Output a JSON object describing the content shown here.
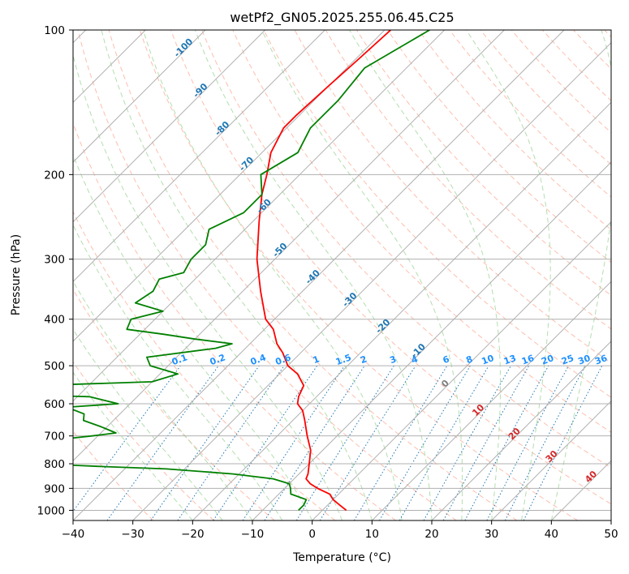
{
  "chart_data": {
    "type": "line",
    "title": "wetPf2_GN05.2025.255.06.45.C25",
    "xlabel": "Temperature (°C)",
    "ylabel": "Pressure (hPa)",
    "xlim": [
      -40,
      50
    ],
    "ylim": [
      1050,
      100
    ],
    "y_scale": "log",
    "x_ticks": [
      "−40",
      "−30",
      "−20",
      "−10",
      "0",
      "10",
      "20",
      "30",
      "40",
      "50"
    ],
    "y_ticks": [
      "100",
      "200",
      "300",
      "400",
      "500",
      "600",
      "700",
      "800",
      "900",
      "1000"
    ],
    "grid": true,
    "skew": true,
    "colors": {
      "temperature": "#ff0000",
      "dewpoint": "#008000",
      "isotherm": "#b0b0b0",
      "dry_adiabat": "#fdae98",
      "moist_adiabat": "#a6d8a0",
      "mixing_ratio": "#1f77b4",
      "isotherm_label": "#1f77b4",
      "warm_label": "#d62728",
      "zero_label": "#7f7f7f",
      "mixing_label": "#1e90ff"
    },
    "series": [
      {
        "key": "temperature",
        "p": [
          1000,
          975,
          950,
          925,
          900,
          880,
          860,
          840,
          800,
          750,
          700,
          650,
          620,
          600,
          580,
          550,
          520,
          500,
          470,
          450,
          420,
          400,
          350,
          300,
          250,
          220,
          200,
          180,
          160,
          150,
          130,
          115,
          100
        ],
        "t": [
          4,
          2,
          0,
          -1.5,
          -4.5,
          -6.5,
          -8,
          -8.5,
          -10,
          -12,
          -15,
          -18,
          -20,
          -22,
          -23,
          -24,
          -27,
          -30,
          -33,
          -35.5,
          -38.5,
          -41.5,
          -47,
          -53,
          -59,
          -63,
          -65.5,
          -68.5,
          -70.5,
          -70.5,
          -70,
          -69.5,
          -69
        ]
      },
      {
        "key": "dewpoint",
        "p": [
          1000,
          975,
          950,
          925,
          900,
          880,
          860,
          840,
          820,
          810,
          800,
          790,
          780,
          770,
          760,
          740,
          720,
          700,
          690,
          670,
          650,
          630,
          620,
          610,
          600,
          580,
          575,
          560,
          550,
          540,
          520,
          500,
          480,
          460,
          450,
          440,
          430,
          420,
          400,
          385,
          370,
          350,
          330,
          320,
          300,
          280,
          260,
          240,
          220,
          200,
          180,
          160,
          140,
          120,
          100
        ],
        "t": [
          -4,
          -4,
          -4.5,
          -8,
          -9,
          -10,
          -13.5,
          -21,
          -33,
          -45,
          -55,
          -57,
          -57,
          -55,
          -57,
          -56,
          -59,
          -51,
          -47.5,
          -51,
          -55,
          -56,
          -58,
          -60,
          -52,
          -58,
          -70,
          -80,
          -69,
          -50,
          -47,
          -53,
          -55,
          -45,
          -43,
          -50,
          -56,
          -63,
          -64,
          -60,
          -66,
          -65,
          -66,
          -63,
          -64,
          -64,
          -66,
          -63,
          -63,
          -66.5,
          -64,
          -66,
          -66,
          -67,
          -62.5
        ]
      }
    ],
    "isotherm_labels": [
      "-100",
      "-90",
      "-80",
      "-70",
      "-60",
      "-50",
      "-40",
      "-30",
      "-20",
      "-10"
    ],
    "warm_isotherm_labels": [
      "0",
      "10",
      "20",
      "30",
      "40"
    ],
    "mixing_ratio_labels": [
      "0.1",
      "0.2",
      "0.4",
      "0.6",
      "1",
      "1.5",
      "2",
      "3",
      "4",
      "6",
      "8",
      "10",
      "13",
      "16",
      "20",
      "25",
      "30",
      "36"
    ]
  }
}
